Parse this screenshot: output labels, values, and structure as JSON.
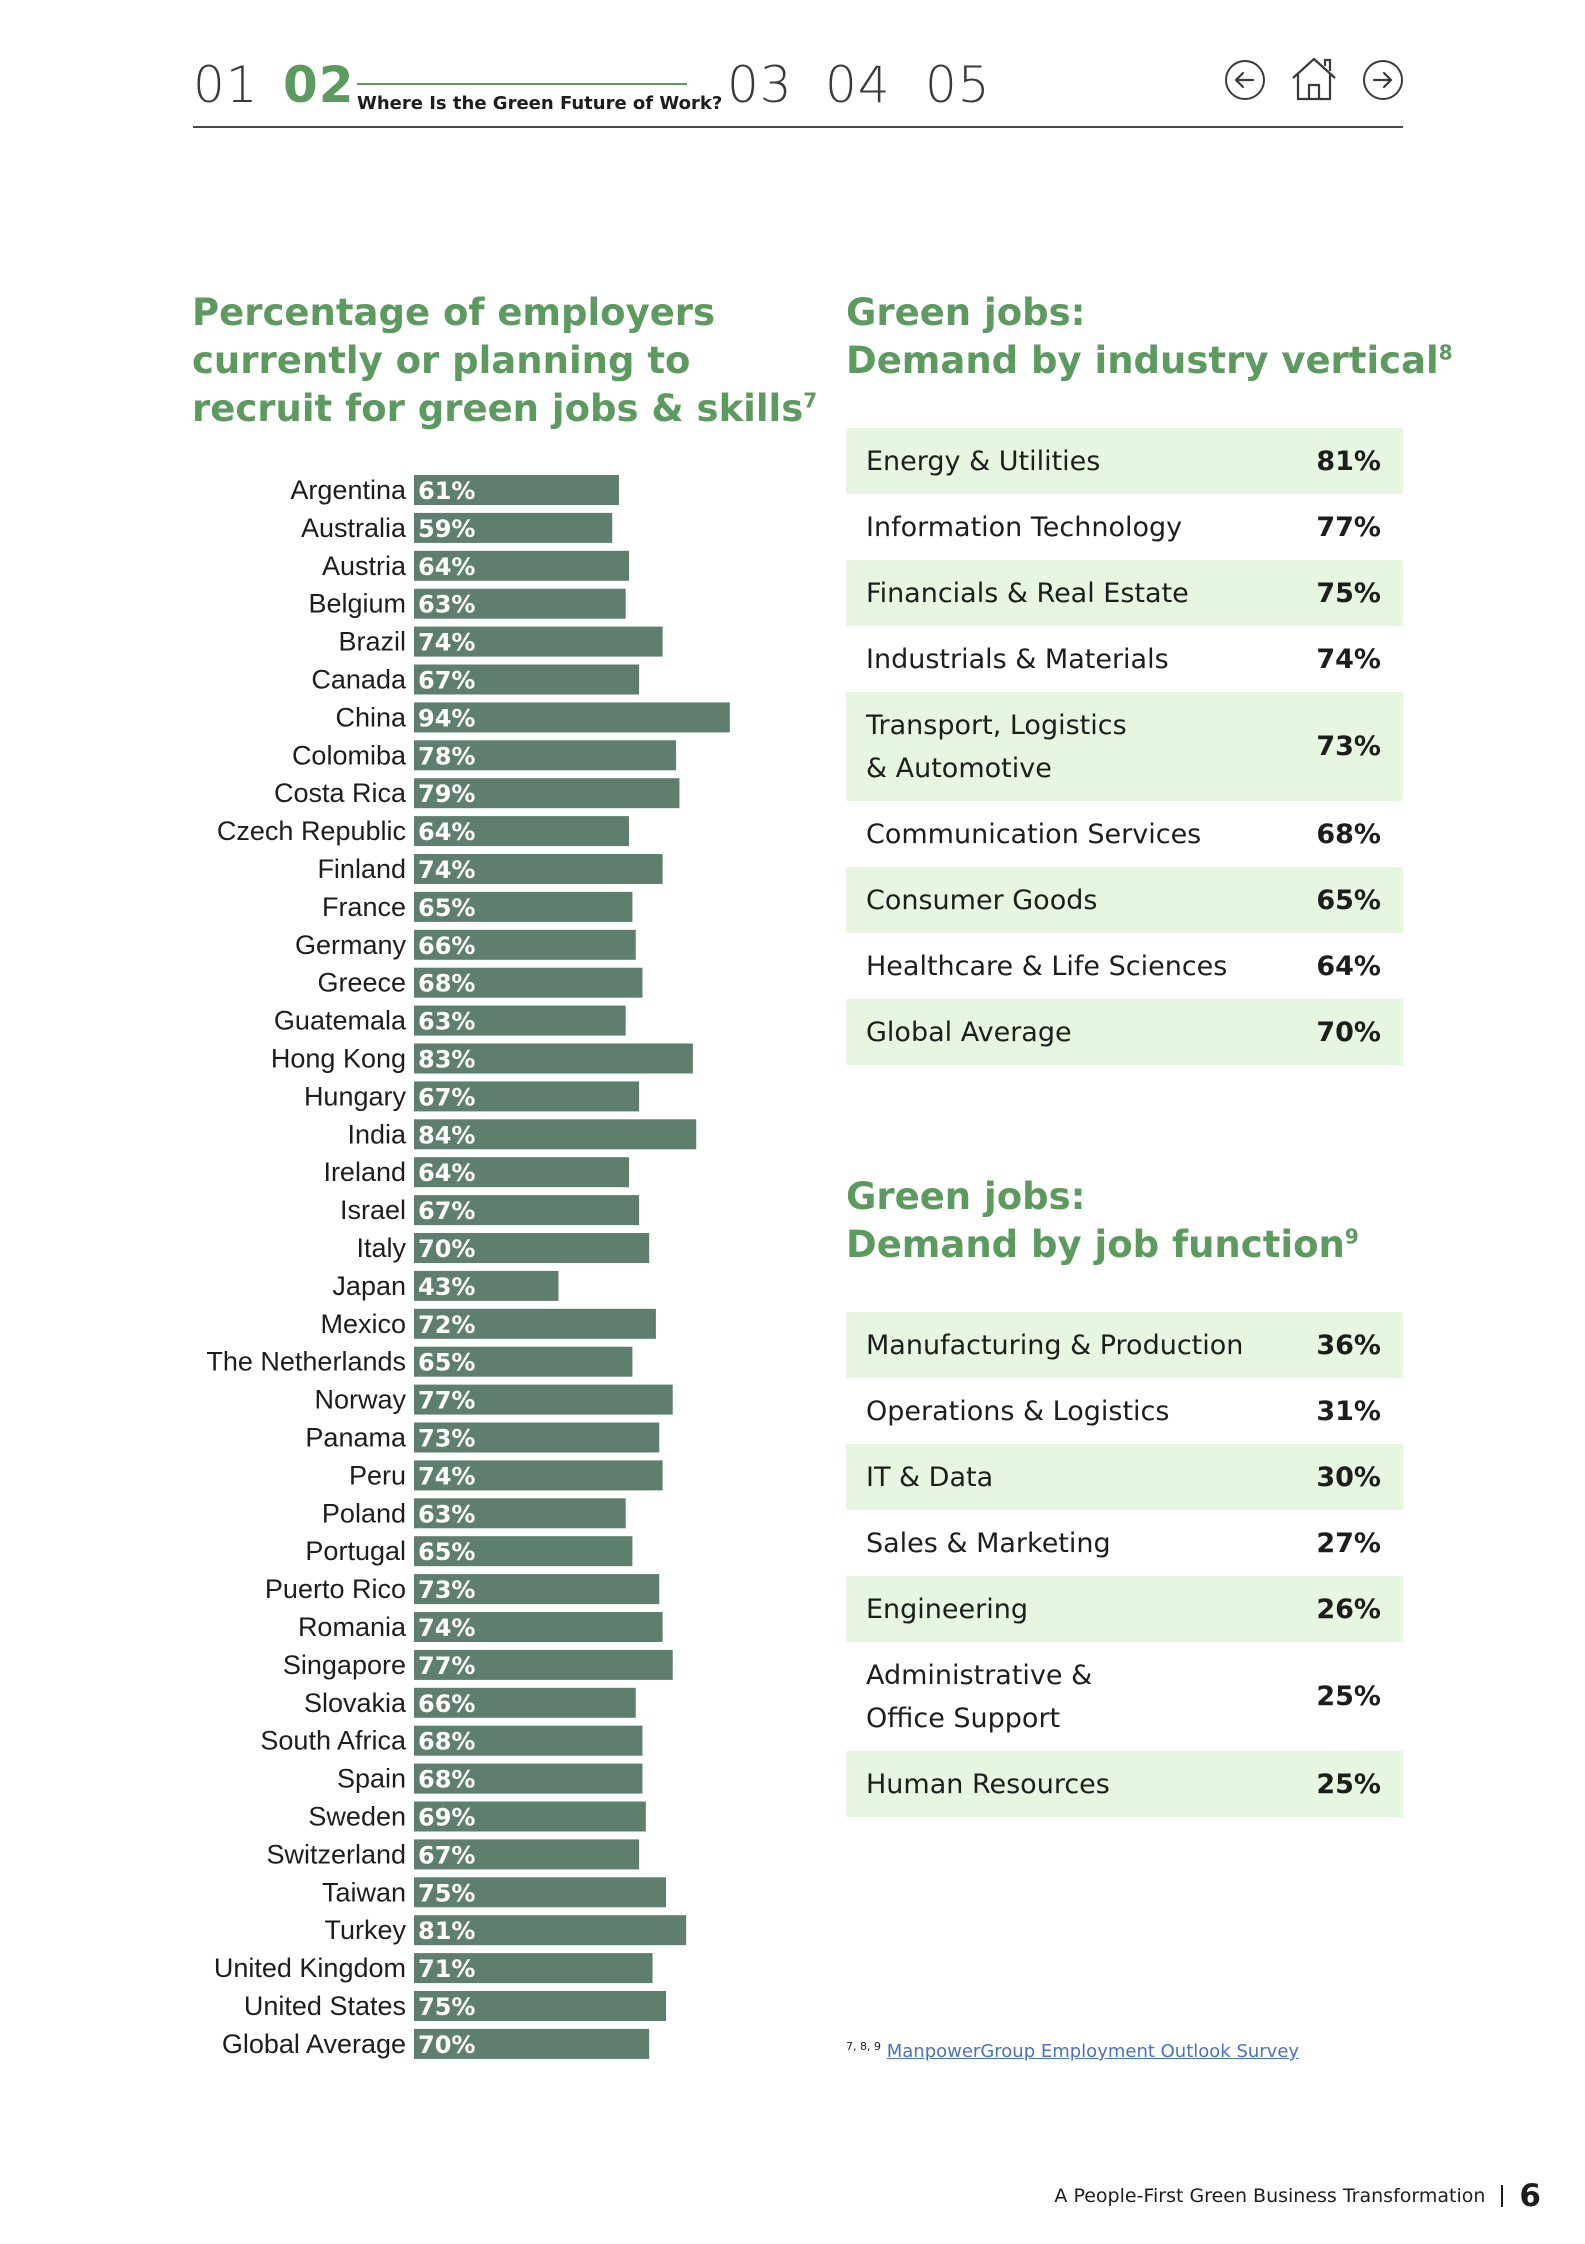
{
  "nav": {
    "sections": [
      "01",
      "02",
      "03",
      "04",
      "05"
    ],
    "active_index": 1,
    "section_title": "Where Is the Green Future of Work?",
    "icons": [
      "arrow-left-icon",
      "home-icon",
      "arrow-right-icon"
    ]
  },
  "left": {
    "heading_lines": [
      "Percentage of employers",
      "currently or planning to",
      "recruit for green jobs & skills"
    ],
    "heading_sup": "7"
  },
  "chart_data": {
    "type": "bar",
    "orientation": "horizontal",
    "title": "Percentage of employers currently or planning to recruit for green jobs & skills",
    "categories": [
      "Argentina",
      "Australia",
      "Austria",
      "Belgium",
      "Brazil",
      "Canada",
      "China",
      "Colomiba",
      "Costa Rica",
      "Czech Republic",
      "Finland",
      "France",
      "Germany",
      "Greece",
      "Guatemala",
      "Hong Kong",
      "Hungary",
      "India",
      "Ireland",
      "Israel",
      "Italy",
      "Japan",
      "Mexico",
      "The Netherlands",
      "Norway",
      "Panama",
      "Peru",
      "Poland",
      "Portugal",
      "Puerto Rico",
      "Romania",
      "Singapore",
      "Slovakia",
      "South Africa",
      "Spain",
      "Sweden",
      "Switzerland",
      "Taiwan",
      "Turkey",
      "United Kingdom",
      "United States",
      "Global Average"
    ],
    "values": [
      61,
      59,
      64,
      63,
      74,
      67,
      94,
      78,
      79,
      64,
      74,
      65,
      66,
      68,
      63,
      83,
      67,
      84,
      64,
      67,
      70,
      43,
      72,
      65,
      77,
      73,
      74,
      63,
      65,
      73,
      74,
      77,
      66,
      68,
      68,
      69,
      67,
      75,
      81,
      71,
      75,
      70
    ],
    "value_labels": [
      "61%",
      "59%",
      "64%",
      "63%",
      "74%",
      "67%",
      "94%",
      "78%",
      "79%",
      "64%",
      "74%",
      "65%",
      "66%",
      "68%",
      "63%",
      "83%",
      "67%",
      "84%",
      "64%",
      "67%",
      "70%",
      "43%",
      "72%",
      "65%",
      "77%",
      "73%",
      "74%",
      "63%",
      "65%",
      "73%",
      "74%",
      "77%",
      "66%",
      "68%",
      "68%",
      "69%",
      "67%",
      "75%",
      "81%",
      "71%",
      "75%",
      "70%"
    ],
    "unit": "%",
    "xlim": [
      0,
      100
    ],
    "grid": false,
    "legend": "none",
    "colors": {
      "bar": "#5f7f6e",
      "value_text": "#ffffff"
    }
  },
  "industry": {
    "heading_lines": [
      "Green jobs:",
      "Demand by industry vertical"
    ],
    "heading_sup": "8",
    "rows": [
      {
        "label": [
          "Energy & Utilities"
        ],
        "value": "81%"
      },
      {
        "label": [
          "Information Technology"
        ],
        "value": "77%"
      },
      {
        "label": [
          "Financials & Real Estate"
        ],
        "value": "75%"
      },
      {
        "label": [
          "Industrials & Materials"
        ],
        "value": "74%"
      },
      {
        "label": [
          "Transport, Logistics",
          "& Automotive"
        ],
        "value": "73%"
      },
      {
        "label": [
          "Communication Services"
        ],
        "value": "68%"
      },
      {
        "label": [
          "Consumer Goods"
        ],
        "value": "65%"
      },
      {
        "label": [
          "Healthcare & Life Sciences"
        ],
        "value": "64%"
      },
      {
        "label": [
          "Global Average"
        ],
        "value": "70%"
      }
    ]
  },
  "function": {
    "heading_lines": [
      "Green jobs:",
      "Demand by job function"
    ],
    "heading_sup": "9",
    "rows": [
      {
        "label": [
          "Manufacturing & Production"
        ],
        "value": "36%"
      },
      {
        "label": [
          "Operations & Logistics"
        ],
        "value": "31%"
      },
      {
        "label": [
          "IT & Data"
        ],
        "value": "30%"
      },
      {
        "label": [
          "Sales & Marketing"
        ],
        "value": "27%"
      },
      {
        "label": [
          "Engineering"
        ],
        "value": "26%"
      },
      {
        "label": [
          "Administrative &",
          "Office Support"
        ],
        "value": "25%"
      },
      {
        "label": [
          "Human Resources"
        ],
        "value": "25%"
      }
    ]
  },
  "footnote": {
    "marks": "7, 8, 9",
    "link_text": "ManpowerGroup Employment Outlook Survey"
  },
  "footer": {
    "title": "A People-First Green Business Transformation",
    "page": "6"
  },
  "colors": {
    "accent_green": "#5c9a5f",
    "row_shade": "#e6f6e1",
    "bar": "#5f7f6e",
    "link": "#4a72b8"
  }
}
